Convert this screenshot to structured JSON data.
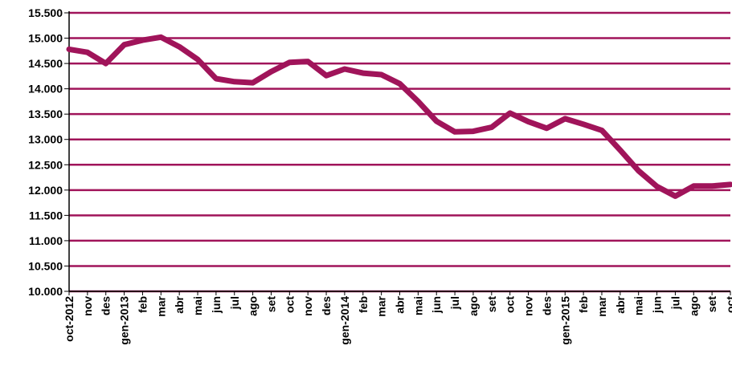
{
  "chart_data": {
    "type": "line",
    "title": "",
    "xlabel": "",
    "ylabel": "",
    "ylim": [
      10000,
      15500
    ],
    "yticks": [
      "10.000",
      "10.500",
      "11.000",
      "11.500",
      "12.000",
      "12.500",
      "13.000",
      "13.500",
      "14.000",
      "14.500",
      "15.000",
      "15.500"
    ],
    "grid": true,
    "line_color": "#A0145A",
    "grid_color": "#A0145A",
    "categories": [
      "oct-2012",
      "nov",
      "des",
      "gen-2013",
      "feb",
      "mar",
      "abr",
      "mai",
      "jun",
      "jul",
      "ago",
      "set",
      "oct",
      "nov",
      "des",
      "gen-2014",
      "feb",
      "mar",
      "abr",
      "mai",
      "jun",
      "jul",
      "ago",
      "set",
      "oct",
      "nov",
      "des",
      "gen-2015",
      "feb",
      "mar",
      "abr",
      "mai",
      "jun",
      "jul",
      "ago",
      "set",
      "oct"
    ],
    "series": [
      {
        "values": [
          14780,
          14720,
          14500,
          14870,
          14960,
          15020,
          14830,
          14580,
          14200,
          14140,
          14120,
          14340,
          14520,
          14540,
          14260,
          14390,
          14310,
          14280,
          14100,
          13750,
          13360,
          13150,
          13160,
          13240,
          13520,
          13350,
          13220,
          13410,
          13300,
          13180,
          12790,
          12380,
          12070,
          11880,
          12080,
          12080,
          12110
        ]
      }
    ]
  }
}
